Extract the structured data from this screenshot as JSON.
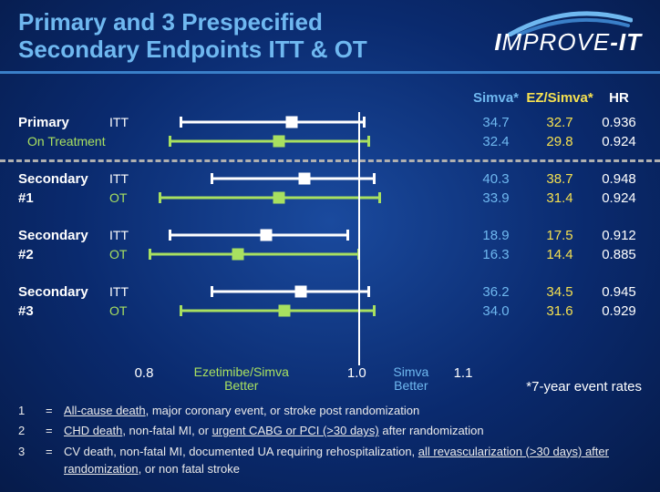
{
  "title_line1": "Primary and 3 Prespecified",
  "title_line2": "Secondary Endpoints ITT & OT",
  "logo_text_1": "I",
  "logo_text_2": "MPROVE",
  "logo_text_3": "-IT",
  "headers": {
    "simva": "Simva*",
    "ez": "EZ/Simva*",
    "hr": "HR"
  },
  "axis": {
    "min": 0.8,
    "max": 1.1,
    "ref": 1.0,
    "ticks": [
      0.8,
      1.0,
      1.1
    ],
    "left_label": "Ezetimibe/Simva Better",
    "right_label": "Simva Better"
  },
  "rate_note": "*7-year event rates",
  "groups": [
    {
      "label": "Primary",
      "rows": [
        {
          "sub": "ITT",
          "style": "itt",
          "lo": 0.83,
          "pt": 0.936,
          "hi": 1.005,
          "simva": "34.7",
          "ez": "32.7",
          "hr": "0.936"
        },
        {
          "sub": "On Treatment",
          "sub_short": "OT",
          "style": "ot",
          "full_sub": true,
          "lo": 0.82,
          "pt": 0.924,
          "hi": 1.01,
          "simva": "32.4",
          "ez": "29.8",
          "hr": "0.924"
        }
      ]
    },
    {
      "label": "Secondary #1",
      "rows": [
        {
          "sub": "ITT",
          "style": "itt",
          "lo": 0.86,
          "pt": 0.948,
          "hi": 1.015,
          "simva": "40.3",
          "ez": "38.7",
          "hr": "0.948"
        },
        {
          "sub": "OT",
          "style": "ot",
          "lo": 0.81,
          "pt": 0.924,
          "hi": 1.02,
          "simva": "33.9",
          "ez": "31.4",
          "hr": "0.924"
        }
      ]
    },
    {
      "label": "Secondary #2",
      "rows": [
        {
          "sub": "ITT",
          "style": "itt",
          "lo": 0.82,
          "pt": 0.912,
          "hi": 0.99,
          "simva": "18.9",
          "ez": "17.5",
          "hr": "0.912"
        },
        {
          "sub": "OT",
          "style": "ot",
          "lo": 0.8,
          "pt": 0.885,
          "hi": 1.0,
          "simva": "16.3",
          "ez": "14.4",
          "hr": "0.885"
        }
      ]
    },
    {
      "label": "Secondary #3",
      "rows": [
        {
          "sub": "ITT",
          "style": "itt",
          "lo": 0.86,
          "pt": 0.945,
          "hi": 1.01,
          "simva": "36.2",
          "ez": "34.5",
          "hr": "0.945"
        },
        {
          "sub": "OT",
          "style": "ot",
          "lo": 0.83,
          "pt": 0.929,
          "hi": 1.015,
          "simva": "34.0",
          "ez": "31.6",
          "hr": "0.929"
        }
      ]
    }
  ],
  "colors": {
    "itt": "#ffffff",
    "ot": "#a8e060",
    "simva_text": "#6fb8f0",
    "ez_text": "#f5e050"
  },
  "footnotes": [
    {
      "n": "1",
      "html": "<u>All-cause death</u>, major coronary event, or stroke post randomization"
    },
    {
      "n": "2",
      "html": "<u>CHD death</u>, non-fatal MI, or <u>urgent CABG or PCI (>30 days)</u> after randomization"
    },
    {
      "n": "3",
      "html": "CV death, non-fatal MI, documented UA requiring rehospitalization, <u>all revascularization (>30 days) after randomization</u>, or non fatal stroke"
    }
  ]
}
